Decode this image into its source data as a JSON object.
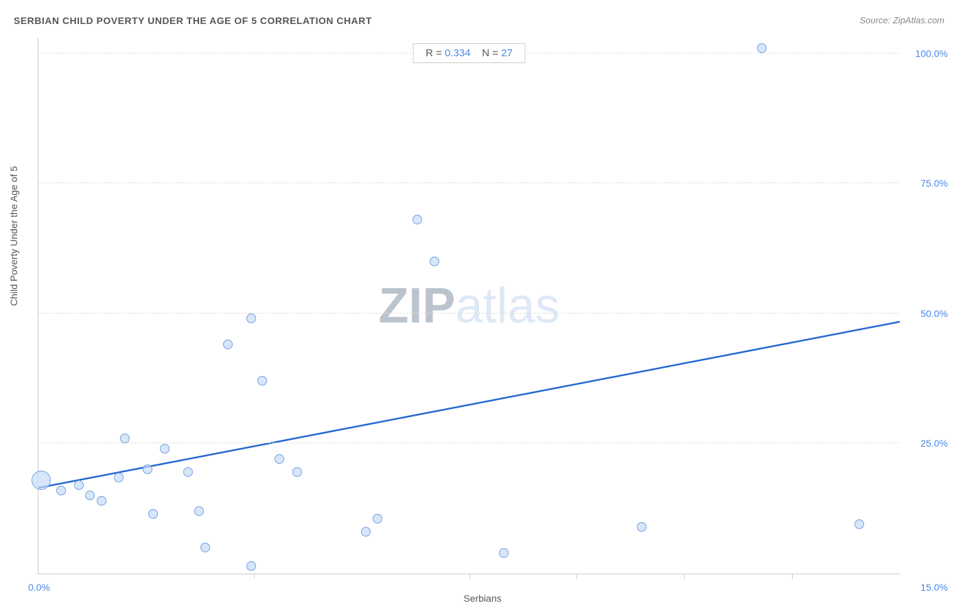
{
  "title": "SERBIAN CHILD POVERTY UNDER THE AGE OF 5 CORRELATION CHART",
  "source": "Source: ZipAtlas.com",
  "chart": {
    "type": "scatter",
    "x_axis": {
      "label": "Serbians",
      "min": 0.0,
      "max": 15.0,
      "origin_label": "0.0%",
      "max_label": "15.0%",
      "tick_positions_pct": [
        25,
        50,
        62.5,
        75,
        87.5
      ]
    },
    "y_axis": {
      "label": "Child Poverty Under the Age of 5",
      "min": 0.0,
      "max": 103.0,
      "ticks": [
        {
          "value": 25.0,
          "label": "25.0%"
        },
        {
          "value": 50.0,
          "label": "50.0%"
        },
        {
          "value": 75.0,
          "label": "75.0%"
        },
        {
          "value": 100.0,
          "label": "100.0%"
        }
      ]
    },
    "stats": {
      "r_label": "R =",
      "r_value": "0.334",
      "n_label": "N =",
      "n_value": "27"
    },
    "trend_line": {
      "x1_pct": 0.0,
      "y1_pct": 16.0,
      "x2_pct": 100.0,
      "y2_pct": 47.0,
      "color": "#2367d1",
      "width": 2.5
    },
    "bubble_fill": "rgba(200, 220, 248, 0.7)",
    "bubble_stroke": "#6fa0e0",
    "background_color": "#ffffff",
    "grid_color": "#dddddd",
    "points": [
      {
        "x": 0.05,
        "y": 18.0,
        "r": 28
      },
      {
        "x": 0.4,
        "y": 16.0,
        "r": 14
      },
      {
        "x": 0.7,
        "y": 17.0,
        "r": 14
      },
      {
        "x": 0.9,
        "y": 15.0,
        "r": 14
      },
      {
        "x": 1.1,
        "y": 14.0,
        "r": 14
      },
      {
        "x": 1.4,
        "y": 18.5,
        "r": 14
      },
      {
        "x": 1.5,
        "y": 26.0,
        "r": 14
      },
      {
        "x": 1.9,
        "y": 20.0,
        "r": 14
      },
      {
        "x": 2.0,
        "y": 11.5,
        "r": 14
      },
      {
        "x": 2.2,
        "y": 24.0,
        "r": 14
      },
      {
        "x": 2.6,
        "y": 19.5,
        "r": 14
      },
      {
        "x": 2.8,
        "y": 12.0,
        "r": 14
      },
      {
        "x": 2.9,
        "y": 5.0,
        "r": 14
      },
      {
        "x": 3.3,
        "y": 44.0,
        "r": 14
      },
      {
        "x": 3.7,
        "y": 49.0,
        "r": 14
      },
      {
        "x": 3.7,
        "y": 1.5,
        "r": 14
      },
      {
        "x": 3.9,
        "y": 37.0,
        "r": 14
      },
      {
        "x": 4.2,
        "y": 22.0,
        "r": 14
      },
      {
        "x": 4.5,
        "y": 19.5,
        "r": 14
      },
      {
        "x": 5.7,
        "y": 8.0,
        "r": 14
      },
      {
        "x": 5.9,
        "y": 10.5,
        "r": 14
      },
      {
        "x": 6.6,
        "y": 68.0,
        "r": 14
      },
      {
        "x": 6.9,
        "y": 60.0,
        "r": 14
      },
      {
        "x": 8.1,
        "y": 4.0,
        "r": 14
      },
      {
        "x": 10.5,
        "y": 9.0,
        "r": 14
      },
      {
        "x": 12.6,
        "y": 101.0,
        "r": 14
      },
      {
        "x": 14.3,
        "y": 9.5,
        "r": 14
      }
    ],
    "watermark": {
      "bold": "ZIP",
      "light": "atlas"
    }
  }
}
